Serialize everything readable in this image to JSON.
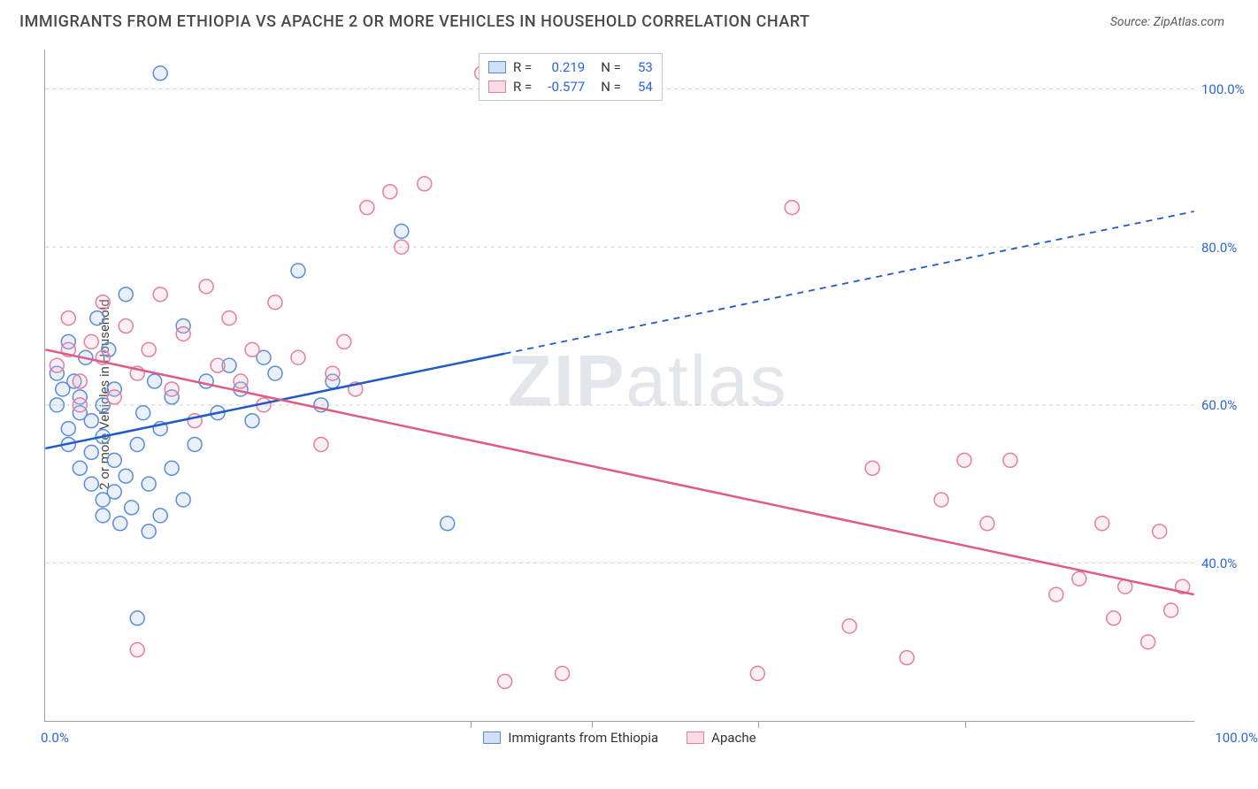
{
  "title": "IMMIGRANTS FROM ETHIOPIA VS APACHE 2 OR MORE VEHICLES IN HOUSEHOLD CORRELATION CHART",
  "source_label": "Source: ZipAtlas.com",
  "y_axis_label": "2 or more Vehicles in Household",
  "watermark": {
    "bold": "ZIP",
    "light": "atlas"
  },
  "chart": {
    "type": "scatter",
    "xlim": [
      0,
      100
    ],
    "ylim": [
      20,
      105
    ],
    "x_ticks": {
      "left": "0.0%",
      "right": "100.0%",
      "minor_positions": [
        37,
        47.5,
        62,
        80
      ]
    },
    "y_ticks": [
      {
        "value": 40,
        "label": "40.0%"
      },
      {
        "value": 60,
        "label": "60.0%"
      },
      {
        "value": 80,
        "label": "80.0%"
      },
      {
        "value": 100,
        "label": "100.0%"
      }
    ],
    "grid_color": "#d0d0d0",
    "axis_color": "#9aa0a6",
    "background_color": "#ffffff",
    "marker_radius": 8,
    "marker_stroke_width": 1.5,
    "marker_fill_opacity": 0.25,
    "trend_line_width": 2.5
  },
  "series": [
    {
      "name": "Immigrants from Ethiopia",
      "color_stroke": "#5b8dd6",
      "color_fill": "#a9c5ec",
      "line_color": "#1f5ac7",
      "R": "0.219",
      "N": "53",
      "trend": {
        "x1": 0,
        "y1": 54.5,
        "x2": 40,
        "y2": 66.5,
        "x2_ext": 100,
        "y2_ext": 84.5
      },
      "points": [
        [
          1,
          64
        ],
        [
          1,
          60
        ],
        [
          1.5,
          62
        ],
        [
          2,
          57
        ],
        [
          2,
          68
        ],
        [
          2,
          55
        ],
        [
          2.5,
          63
        ],
        [
          3,
          59
        ],
        [
          3,
          61
        ],
        [
          3,
          52
        ],
        [
          3.5,
          66
        ],
        [
          4,
          58
        ],
        [
          4,
          54
        ],
        [
          4,
          50
        ],
        [
          4.5,
          71
        ],
        [
          5,
          56
        ],
        [
          5,
          60
        ],
        [
          5,
          48
        ],
        [
          5,
          46
        ],
        [
          5.5,
          67
        ],
        [
          6,
          53
        ],
        [
          6,
          49
        ],
        [
          6,
          62
        ],
        [
          6.5,
          45
        ],
        [
          7,
          51
        ],
        [
          7,
          74
        ],
        [
          7.5,
          47
        ],
        [
          8,
          55
        ],
        [
          8,
          33
        ],
        [
          8.5,
          59
        ],
        [
          9,
          44
        ],
        [
          9,
          50
        ],
        [
          9.5,
          63
        ],
        [
          10,
          46
        ],
        [
          10,
          57
        ],
        [
          11,
          52
        ],
        [
          11,
          61
        ],
        [
          12,
          48
        ],
        [
          12,
          70
        ],
        [
          13,
          55
        ],
        [
          14,
          63
        ],
        [
          15,
          59
        ],
        [
          16,
          65
        ],
        [
          17,
          62
        ],
        [
          18,
          58
        ],
        [
          19,
          66
        ],
        [
          20,
          64
        ],
        [
          22,
          77
        ],
        [
          24,
          60
        ],
        [
          25,
          63
        ],
        [
          31,
          82
        ],
        [
          35,
          45
        ],
        [
          10,
          102
        ]
      ]
    },
    {
      "name": "Apache",
      "color_stroke": "#e37fa0",
      "color_fill": "#f5c0d1",
      "line_color": "#e05a87",
      "R": "-0.577",
      "N": "54",
      "trend": {
        "x1": 0,
        "y1": 67,
        "x2": 100,
        "y2": 36
      },
      "points": [
        [
          1,
          65
        ],
        [
          2,
          67
        ],
        [
          2,
          71
        ],
        [
          3,
          63
        ],
        [
          3,
          60
        ],
        [
          4,
          68
        ],
        [
          5,
          73
        ],
        [
          5,
          66
        ],
        [
          6,
          61
        ],
        [
          7,
          70
        ],
        [
          8,
          64
        ],
        [
          8,
          29
        ],
        [
          9,
          67
        ],
        [
          10,
          74
        ],
        [
          11,
          62
        ],
        [
          12,
          69
        ],
        [
          13,
          58
        ],
        [
          14,
          75
        ],
        [
          15,
          65
        ],
        [
          16,
          71
        ],
        [
          17,
          63
        ],
        [
          18,
          67
        ],
        [
          19,
          60
        ],
        [
          20,
          73
        ],
        [
          22,
          66
        ],
        [
          24,
          55
        ],
        [
          25,
          64
        ],
        [
          26,
          68
        ],
        [
          27,
          62
        ],
        [
          28,
          85
        ],
        [
          30,
          87
        ],
        [
          31,
          80
        ],
        [
          33,
          88
        ],
        [
          38,
          102
        ],
        [
          40,
          25
        ],
        [
          45,
          26
        ],
        [
          65,
          85
        ],
        [
          62,
          26
        ],
        [
          70,
          32
        ],
        [
          72,
          52
        ],
        [
          75,
          28
        ],
        [
          78,
          48
        ],
        [
          80,
          53
        ],
        [
          82,
          45
        ],
        [
          84,
          53
        ],
        [
          88,
          36
        ],
        [
          90,
          38
        ],
        [
          92,
          45
        ],
        [
          93,
          33
        ],
        [
          94,
          37
        ],
        [
          96,
          30
        ],
        [
          97,
          44
        ],
        [
          98,
          34
        ],
        [
          99,
          37
        ]
      ]
    }
  ],
  "legend_top_labels": {
    "R": "R =",
    "N": "N ="
  },
  "legend_bottom": [
    {
      "label": "Immigrants from Ethiopia",
      "stroke": "#5b8dd6",
      "fill": "#a9c5ec"
    },
    {
      "label": "Apache",
      "stroke": "#e37fa0",
      "fill": "#f5c0d1"
    }
  ]
}
